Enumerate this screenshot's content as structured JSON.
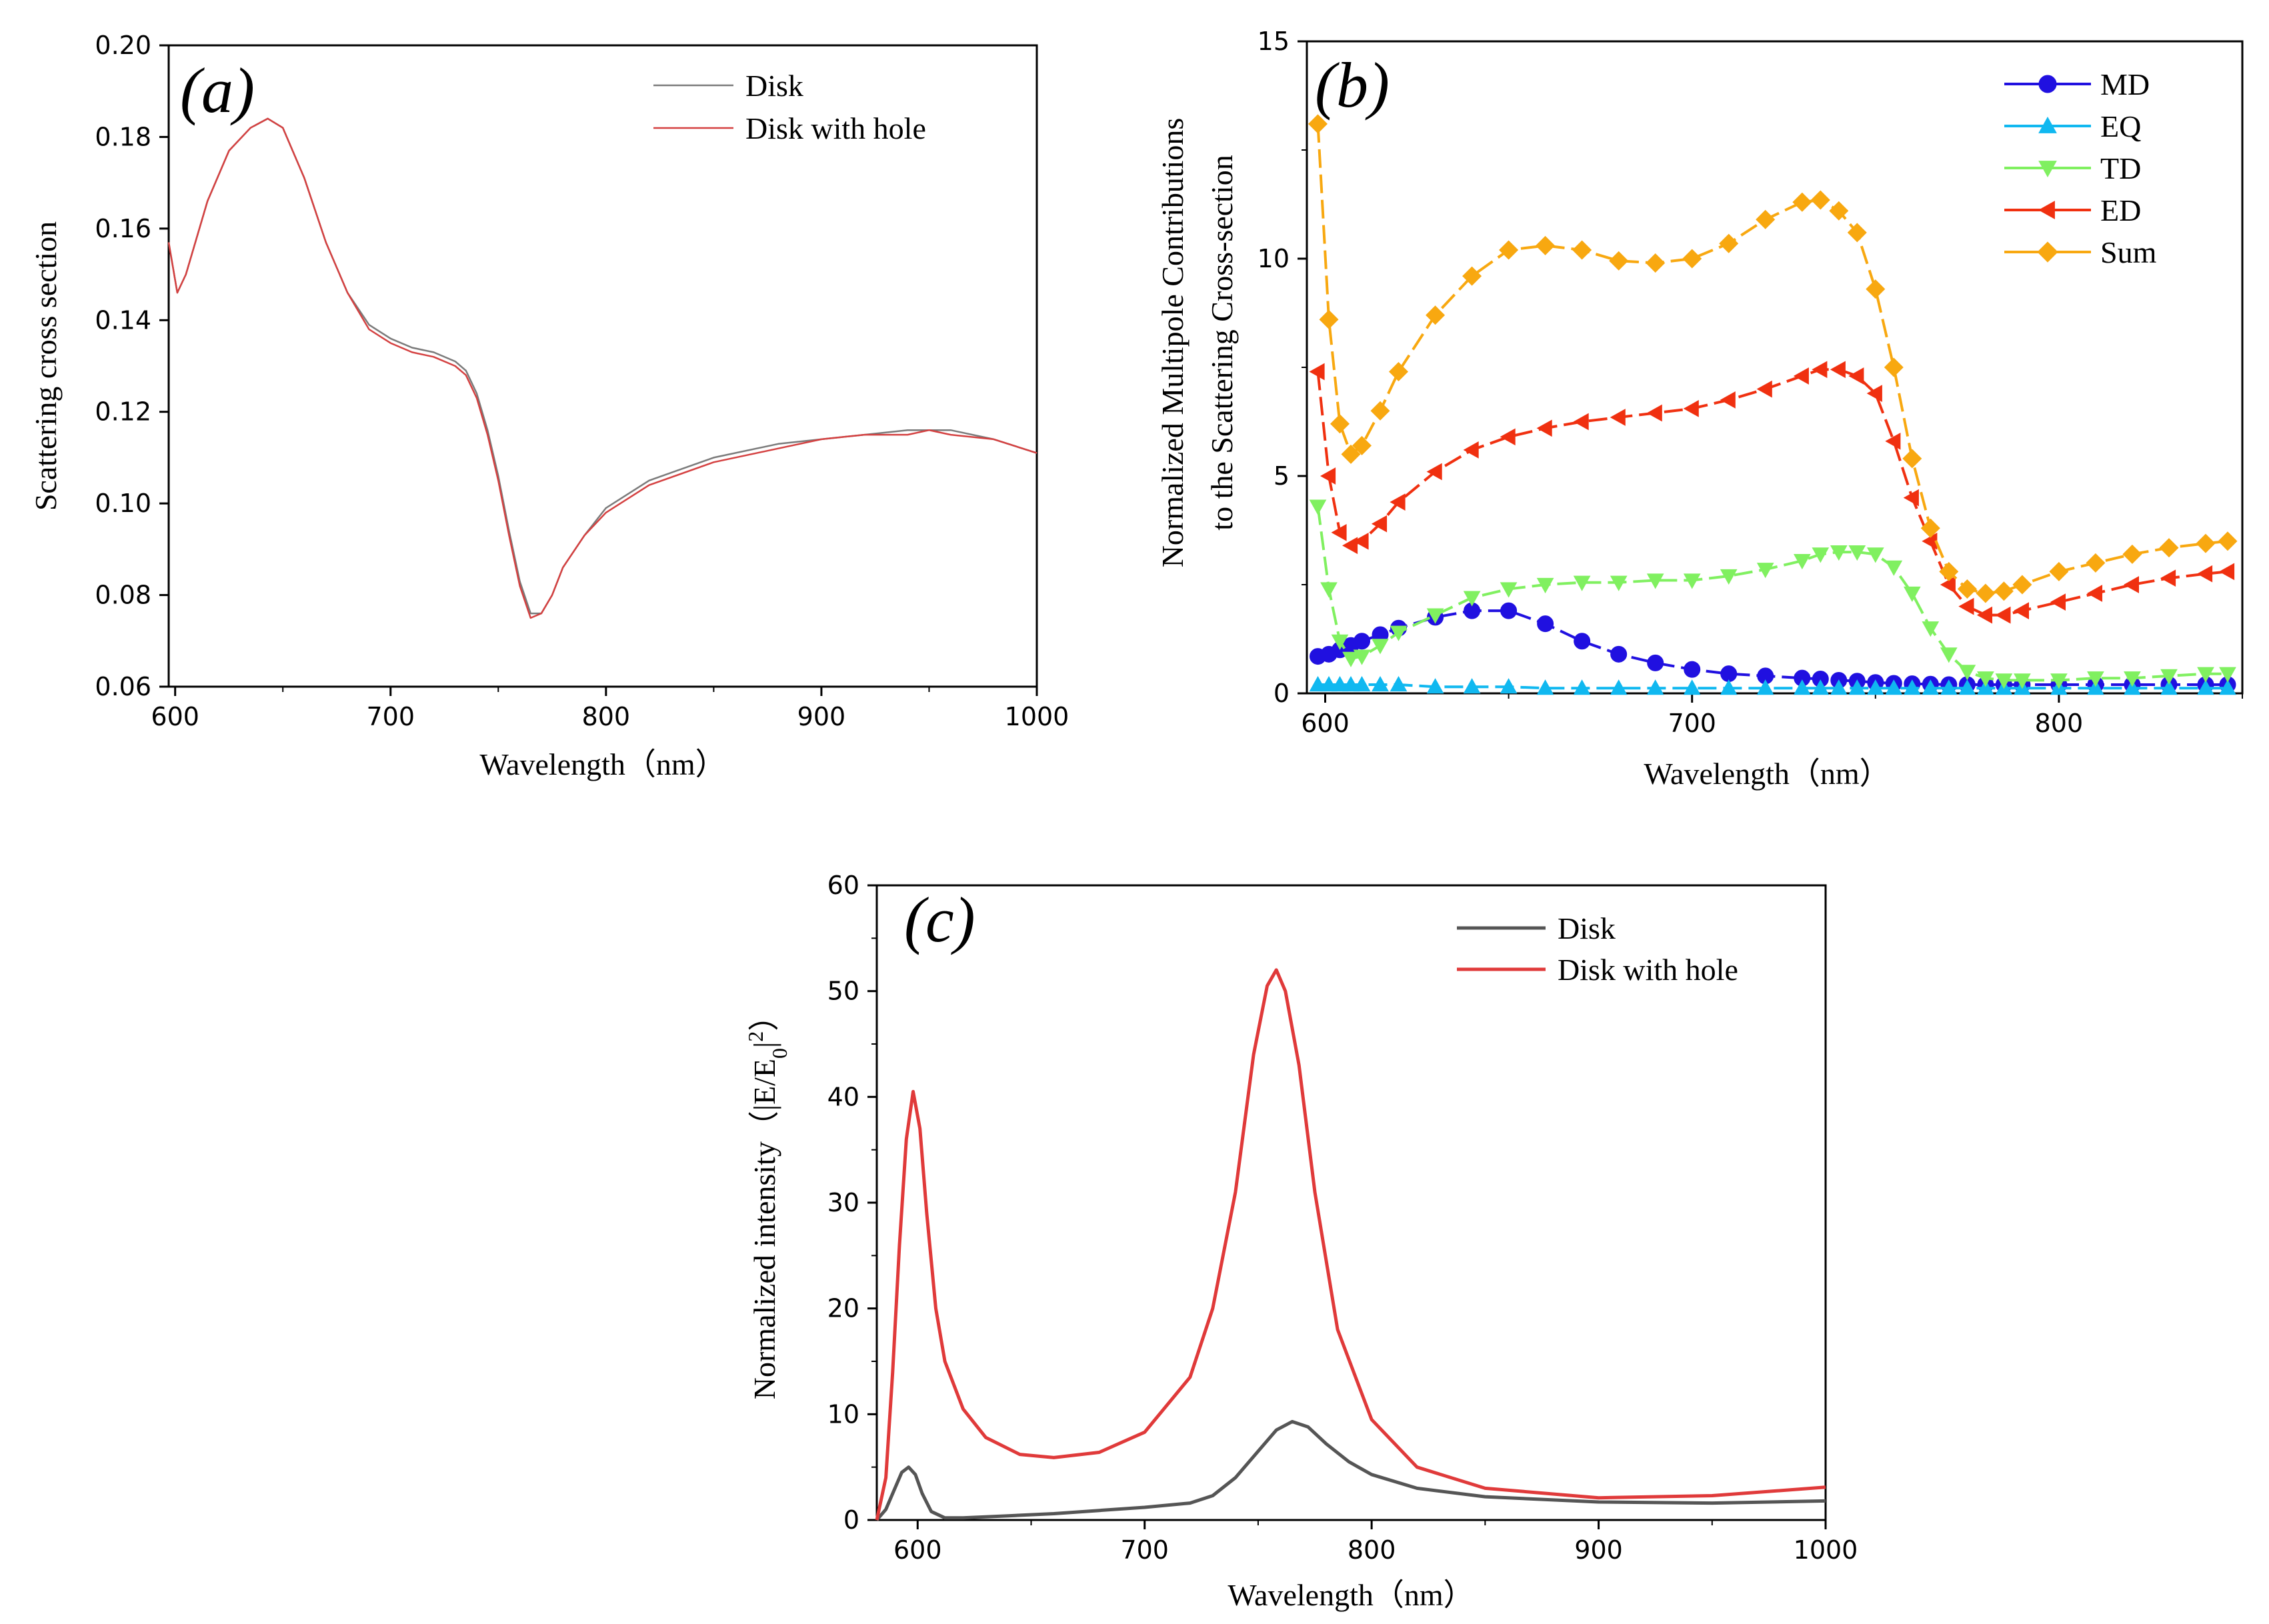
{
  "chart_data": [
    {
      "panel": "a",
      "panel_label": "(a)",
      "type": "line",
      "xlabel": "Wavelength（nm）",
      "ylabel": "Scattering cross section",
      "xlim": [
        597,
        1000
      ],
      "ylim": [
        0.06,
        0.2
      ],
      "xticks": [
        600,
        700,
        800,
        900,
        1000
      ],
      "yticks": [
        "0.06",
        "0.08",
        "0.10",
        "0.12",
        "0.14",
        "0.16",
        "0.18",
        "0.20"
      ],
      "legend": [
        "Disk",
        "Disk with hole"
      ],
      "legend_position": "top-right",
      "x": [
        597,
        601,
        605,
        615,
        625,
        635,
        643,
        650,
        660,
        670,
        680,
        690,
        700,
        710,
        720,
        730,
        735,
        740,
        745,
        750,
        755,
        760,
        765,
        770,
        775,
        780,
        790,
        800,
        820,
        850,
        880,
        900,
        920,
        940,
        950,
        960,
        980,
        1000
      ],
      "series": [
        {
          "name": "Disk",
          "color": "#7a7a7a",
          "values": [
            0.157,
            0.146,
            0.15,
            0.166,
            0.177,
            0.182,
            0.184,
            0.182,
            0.171,
            0.157,
            0.146,
            0.139,
            0.136,
            0.134,
            0.133,
            0.131,
            0.129,
            0.124,
            0.116,
            0.106,
            0.094,
            0.083,
            0.076,
            0.076,
            0.08,
            0.086,
            0.093,
            0.099,
            0.105,
            0.11,
            0.113,
            0.114,
            0.115,
            0.116,
            0.116,
            0.116,
            0.114,
            0.111
          ]
        },
        {
          "name": "Disk with hole",
          "color": "#d44040",
          "values": [
            0.157,
            0.146,
            0.15,
            0.166,
            0.177,
            0.182,
            0.184,
            0.182,
            0.171,
            0.157,
            0.146,
            0.138,
            0.135,
            0.133,
            0.132,
            0.13,
            0.128,
            0.123,
            0.115,
            0.105,
            0.093,
            0.082,
            0.075,
            0.076,
            0.08,
            0.086,
            0.093,
            0.098,
            0.104,
            0.109,
            0.112,
            0.114,
            0.115,
            0.115,
            0.116,
            0.115,
            0.114,
            0.111
          ]
        }
      ]
    },
    {
      "panel": "b",
      "panel_label": "(b)",
      "type": "line",
      "xlabel": "Wavelength（nm）",
      "ylabel_line1": "Normalized Multipole Contributions",
      "ylabel_line2": "to the Scattering Cross-section",
      "xlim": [
        595,
        850
      ],
      "ylim": [
        0,
        15
      ],
      "xticks": [
        600,
        700,
        800
      ],
      "yticks": [
        0,
        5,
        10,
        15
      ],
      "legend": [
        "MD",
        "EQ",
        "TD",
        "ED",
        "Sum"
      ],
      "legend_position": "top-right",
      "x": [
        598,
        601,
        604,
        607,
        610,
        615,
        620,
        630,
        640,
        650,
        660,
        670,
        680,
        690,
        700,
        710,
        720,
        730,
        735,
        740,
        745,
        750,
        755,
        760,
        765,
        770,
        775,
        780,
        785,
        790,
        800,
        810,
        820,
        830,
        840,
        846
      ],
      "series": [
        {
          "name": "MD",
          "color": "#2010e0",
          "marker": "circle",
          "values": [
            0.85,
            0.9,
            1.0,
            1.1,
            1.2,
            1.35,
            1.5,
            1.75,
            1.9,
            1.9,
            1.6,
            1.2,
            0.9,
            0.7,
            0.55,
            0.45,
            0.4,
            0.35,
            0.33,
            0.3,
            0.28,
            0.25,
            0.23,
            0.22,
            0.21,
            0.2,
            0.2,
            0.2,
            0.2,
            0.2,
            0.2,
            0.2,
            0.2,
            0.2,
            0.2,
            0.2
          ]
        },
        {
          "name": "EQ",
          "color": "#10b8f0",
          "marker": "triangle-up",
          "values": [
            0.2,
            0.2,
            0.2,
            0.2,
            0.2,
            0.2,
            0.2,
            0.15,
            0.15,
            0.15,
            0.12,
            0.12,
            0.12,
            0.12,
            0.12,
            0.12,
            0.12,
            0.12,
            0.12,
            0.12,
            0.12,
            0.12,
            0.12,
            0.12,
            0.12,
            0.12,
            0.12,
            0.12,
            0.12,
            0.12,
            0.12,
            0.12,
            0.12,
            0.12,
            0.12,
            0.12
          ]
        },
        {
          "name": "TD",
          "color": "#80f060",
          "marker": "triangle-down",
          "values": [
            4.3,
            2.4,
            1.2,
            0.8,
            0.85,
            1.1,
            1.4,
            1.8,
            2.2,
            2.4,
            2.5,
            2.55,
            2.55,
            2.6,
            2.6,
            2.7,
            2.85,
            3.05,
            3.2,
            3.25,
            3.25,
            3.2,
            2.9,
            2.3,
            1.5,
            0.9,
            0.5,
            0.35,
            0.3,
            0.3,
            0.3,
            0.35,
            0.35,
            0.4,
            0.45,
            0.45
          ]
        },
        {
          "name": "ED",
          "color": "#f03010",
          "marker": "triangle-left",
          "values": [
            7.4,
            5.0,
            3.7,
            3.4,
            3.5,
            3.9,
            4.4,
            5.1,
            5.6,
            5.9,
            6.1,
            6.25,
            6.35,
            6.45,
            6.55,
            6.75,
            7.0,
            7.3,
            7.45,
            7.45,
            7.3,
            6.9,
            5.8,
            4.5,
            3.5,
            2.5,
            2.0,
            1.8,
            1.8,
            1.9,
            2.1,
            2.3,
            2.5,
            2.65,
            2.75,
            2.8
          ]
        },
        {
          "name": "Sum",
          "color": "#f8a810",
          "marker": "diamond",
          "values": [
            13.1,
            8.6,
            6.2,
            5.5,
            5.7,
            6.5,
            7.4,
            8.7,
            9.6,
            10.2,
            10.3,
            10.2,
            9.95,
            9.9,
            10.0,
            10.35,
            10.9,
            11.3,
            11.35,
            11.1,
            10.6,
            9.3,
            7.5,
            5.4,
            3.8,
            2.8,
            2.4,
            2.3,
            2.35,
            2.5,
            2.8,
            3.0,
            3.2,
            3.35,
            3.45,
            3.5
          ]
        }
      ]
    },
    {
      "panel": "c",
      "panel_label": "(c)",
      "type": "line",
      "xlabel": "Wavelength（nm）",
      "ylabel_main": "Normalized intensity（|E/E",
      "ylabel_sub": "0",
      "ylabel_tail": "|",
      "ylabel_sup": "2",
      "ylabel_close": "）",
      "xlim": [
        582,
        1000
      ],
      "ylim": [
        0,
        60
      ],
      "xticks": [
        600,
        700,
        800,
        900,
        1000
      ],
      "yticks": [
        0,
        10,
        20,
        30,
        40,
        50,
        60
      ],
      "legend": [
        "Disk",
        "Disk with hole"
      ],
      "legend_position": "top-right",
      "series": [
        {
          "name": "Disk",
          "color": "#555555",
          "x": [
            582,
            586,
            590,
            593,
            596,
            599,
            602,
            606,
            612,
            620,
            640,
            660,
            680,
            700,
            720,
            730,
            740,
            750,
            758,
            765,
            772,
            780,
            790,
            800,
            820,
            850,
            900,
            950,
            1000
          ],
          "values": [
            0,
            1.0,
            3.0,
            4.5,
            5.0,
            4.3,
            2.5,
            0.8,
            0.2,
            0.2,
            0.4,
            0.6,
            0.9,
            1.2,
            1.6,
            2.3,
            4.0,
            6.5,
            8.5,
            9.3,
            8.8,
            7.2,
            5.5,
            4.3,
            3.0,
            2.2,
            1.7,
            1.6,
            1.8
          ]
        },
        {
          "name": "Disk with hole",
          "color": "#e03a3a",
          "x": [
            582,
            586,
            589,
            592,
            595,
            598,
            601,
            604,
            608,
            612,
            620,
            630,
            645,
            660,
            680,
            700,
            720,
            730,
            740,
            748,
            754,
            758,
            762,
            768,
            775,
            785,
            800,
            820,
            850,
            900,
            950,
            1000
          ],
          "values": [
            0,
            4.0,
            14.0,
            26.0,
            36.0,
            40.5,
            37.0,
            29.0,
            20.0,
            15.0,
            10.5,
            7.8,
            6.2,
            5.9,
            6.4,
            8.3,
            13.5,
            20.0,
            31.0,
            44.0,
            50.5,
            52.0,
            50.0,
            43.0,
            31.0,
            18.0,
            9.5,
            5.0,
            3.0,
            2.1,
            2.3,
            3.1
          ]
        }
      ]
    }
  ]
}
